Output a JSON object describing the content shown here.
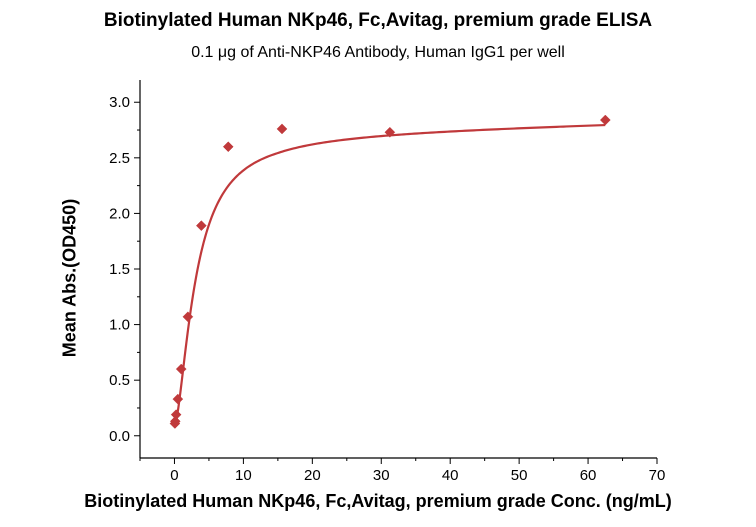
{
  "chart_data": {
    "type": "scatter",
    "title": "Biotinylated Human NKp46, Fc,Avitag, premium grade ELISA",
    "subtitle": "0.1 μg of Anti-NKP46 Antibody, Human IgG1 per well",
    "xlabel": "Biotinylated Human NKp46, Fc,Avitag, premium grade Conc. (ng/mL)",
    "ylabel": "Mean Abs.(OD450)",
    "xlim": [
      -5,
      70
    ],
    "ylim": [
      -0.2,
      3.2
    ],
    "x_ticks": [
      0,
      10,
      20,
      30,
      40,
      50,
      60,
      70
    ],
    "y_ticks": [
      0.0,
      0.5,
      1.0,
      1.5,
      2.0,
      2.5,
      3.0
    ],
    "y_tick_labels": [
      "0.0",
      "0.5",
      "1.0",
      "1.5",
      "2.0",
      "2.5",
      "3.0"
    ],
    "series": [
      {
        "name": "ELISA",
        "color": "#c0393b",
        "marker": "diamond",
        "points": [
          {
            "x": 0.06,
            "y": 0.11
          },
          {
            "x": 0.12,
            "y": 0.13
          },
          {
            "x": 0.24,
            "y": 0.19
          },
          {
            "x": 0.49,
            "y": 0.33
          },
          {
            "x": 0.98,
            "y": 0.6
          },
          {
            "x": 1.95,
            "y": 1.07
          },
          {
            "x": 3.9,
            "y": 1.89
          },
          {
            "x": 7.8,
            "y": 2.6
          },
          {
            "x": 15.6,
            "y": 2.76
          },
          {
            "x": 31.25,
            "y": 2.73
          },
          {
            "x": 62.5,
            "y": 2.84
          }
        ],
        "fit_curve": true
      }
    ]
  }
}
